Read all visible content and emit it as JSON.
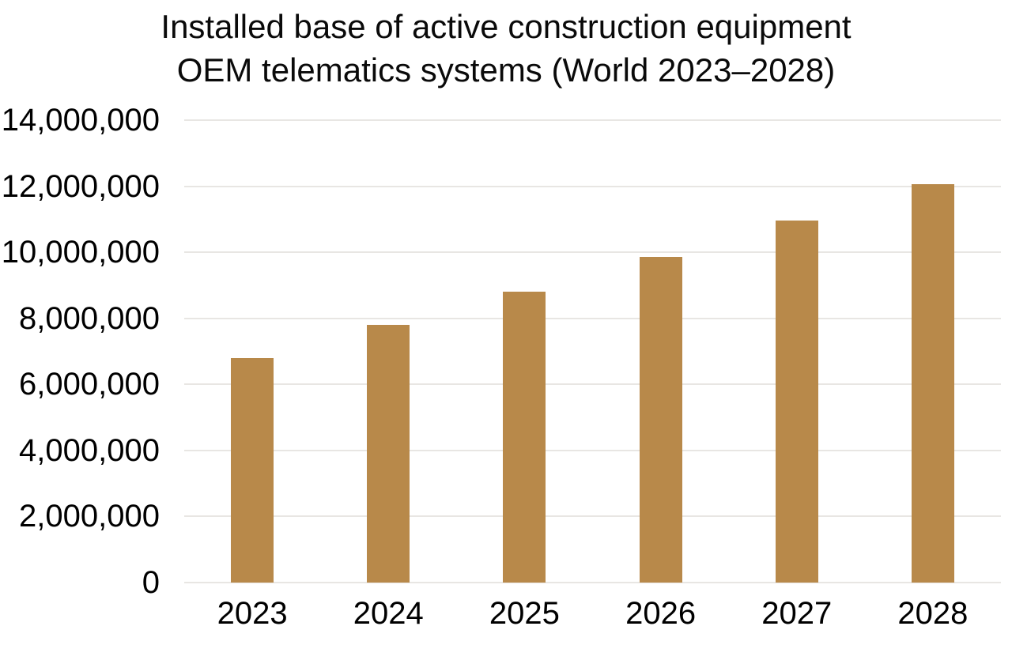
{
  "chart_data": {
    "type": "bar",
    "title": "Installed base of active construction equipment OEM telematics systems (World 2023–2028)",
    "title_lines": [
      "Installed base of active construction equipment",
      "OEM telematics systems (World 2023–2028)"
    ],
    "categories": [
      "2023",
      "2024",
      "2025",
      "2026",
      "2027",
      "2028"
    ],
    "values": [
      6800000,
      7800000,
      8800000,
      9850000,
      10950000,
      12050000
    ],
    "series": [
      {
        "name": "Installed base of active construction equipment OEM telematics systems",
        "values": [
          6800000,
          7800000,
          8800000,
          9850000,
          10950000,
          12050000
        ]
      }
    ],
    "xlabel": "",
    "ylabel": "",
    "ylim": [
      0,
      14000000
    ],
    "y_ticks": [
      0,
      2000000,
      4000000,
      6000000,
      8000000,
      10000000,
      12000000,
      14000000
    ],
    "y_tick_labels": [
      "0",
      "2,000,000",
      "4,000,000",
      "6,000,000",
      "8,000,000",
      "10,000,000",
      "12,000,000",
      "14,000,000"
    ],
    "grid": "horizontal-only",
    "legend": "none",
    "colors": {
      "bar": "#B8894A",
      "gridline": "#E8E6E3",
      "text": "#000000",
      "background": "#FFFFFF"
    }
  }
}
